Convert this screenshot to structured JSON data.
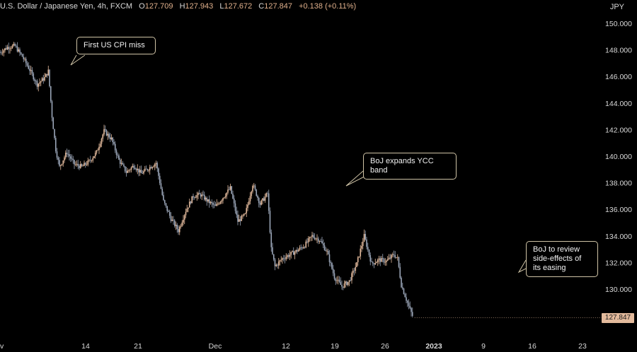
{
  "header": {
    "symbol": "U.S. Dollar / Japanese Yen, 4h, FXCM",
    "open_label": "O",
    "open": "127.709",
    "high_label": "H",
    "high": "127.943",
    "low_label": "L",
    "low": "127.672",
    "close_label": "C",
    "close": "127.847",
    "change": "+0.138 (+0.11%)"
  },
  "currency": "JPY",
  "last_price_label": "127.847",
  "colors": {
    "up": "#e3ba9c",
    "down": "#9ba6b8",
    "background": "#000000",
    "callout_border": "#cfc3a6"
  },
  "chart_data": {
    "type": "candlestick",
    "x_tick_labels": [
      "v",
      "14",
      "21",
      "Dec",
      "12",
      "19",
      "26",
      "2023",
      "9",
      "16",
      "23"
    ],
    "y_tick_labels": [
      "150.000",
      "148.000",
      "146.000",
      "144.000",
      "142.000",
      "140.000",
      "138.000",
      "136.000",
      "134.000",
      "132.000",
      "130.000"
    ],
    "y_ticks": [
      150,
      148,
      146,
      144,
      142,
      140,
      138,
      136,
      134,
      132,
      130
    ],
    "ylim": [
      127.0,
      151.0
    ],
    "path": [
      {
        "d": 0,
        "p": 147.8
      },
      {
        "d": 1,
        "p": 148.2
      },
      {
        "d": 2,
        "p": 148.3
      },
      {
        "d": 3,
        "p": 147.5
      },
      {
        "d": 4,
        "p": 146.5
      },
      {
        "d": 5,
        "p": 145.4
      },
      {
        "d": 6,
        "p": 145.9
      },
      {
        "d": 6.5,
        "p": 146.4
      },
      {
        "d": 7.0,
        "p": 143.0
      },
      {
        "d": 7.5,
        "p": 140.5
      },
      {
        "d": 8,
        "p": 139.2
      },
      {
        "d": 9,
        "p": 140.3
      },
      {
        "d": 10,
        "p": 139.4
      },
      {
        "d": 11,
        "p": 139.2
      },
      {
        "d": 12,
        "p": 139.6
      },
      {
        "d": 13,
        "p": 140.3
      },
      {
        "d": 14,
        "p": 141.9
      },
      {
        "d": 15,
        "p": 141.3
      },
      {
        "d": 16,
        "p": 139.7
      },
      {
        "d": 17,
        "p": 138.8
      },
      {
        "d": 18,
        "p": 139.3
      },
      {
        "d": 19,
        "p": 138.7
      },
      {
        "d": 20,
        "p": 139.1
      },
      {
        "d": 21,
        "p": 139.5
      },
      {
        "d": 22,
        "p": 136.6
      },
      {
        "d": 23,
        "p": 135.3
      },
      {
        "d": 24,
        "p": 134.4
      },
      {
        "d": 25,
        "p": 135.9
      },
      {
        "d": 26,
        "p": 137.0
      },
      {
        "d": 27,
        "p": 137.1
      },
      {
        "d": 28,
        "p": 136.6
      },
      {
        "d": 29,
        "p": 136.2
      },
      {
        "d": 30,
        "p": 136.9
      },
      {
        "d": 31,
        "p": 137.6
      },
      {
        "d": 32,
        "p": 135.1
      },
      {
        "d": 33,
        "p": 135.6
      },
      {
        "d": 34,
        "p": 137.9
      },
      {
        "d": 35,
        "p": 136.4
      },
      {
        "d": 36,
        "p": 137.2
      },
      {
        "d": 36.5,
        "p": 133.0
      },
      {
        "d": 37,
        "p": 131.7
      },
      {
        "d": 38,
        "p": 132.3
      },
      {
        "d": 39,
        "p": 132.6
      },
      {
        "d": 40,
        "p": 132.9
      },
      {
        "d": 41,
        "p": 133.3
      },
      {
        "d": 42,
        "p": 134.0
      },
      {
        "d": 43,
        "p": 133.7
      },
      {
        "d": 44,
        "p": 132.8
      },
      {
        "d": 45,
        "p": 130.9
      },
      {
        "d": 46,
        "p": 130.2
      },
      {
        "d": 47,
        "p": 130.6
      },
      {
        "d": 48,
        "p": 131.9
      },
      {
        "d": 49,
        "p": 134.0
      },
      {
        "d": 50,
        "p": 131.9
      },
      {
        "d": 51,
        "p": 132.2
      },
      {
        "d": 52,
        "p": 132.1
      },
      {
        "d": 53,
        "p": 132.6
      },
      {
        "d": 53.5,
        "p": 132.3
      },
      {
        "d": 54,
        "p": 130.3
      },
      {
        "d": 55,
        "p": 128.7
      },
      {
        "d": 55.6,
        "p": 127.85
      }
    ],
    "annotations": [
      {
        "text": "First US CPI miss"
      },
      {
        "text": "BoJ expands YCC band"
      },
      {
        "text": "BoJ to review side-effects of its easing"
      }
    ]
  }
}
